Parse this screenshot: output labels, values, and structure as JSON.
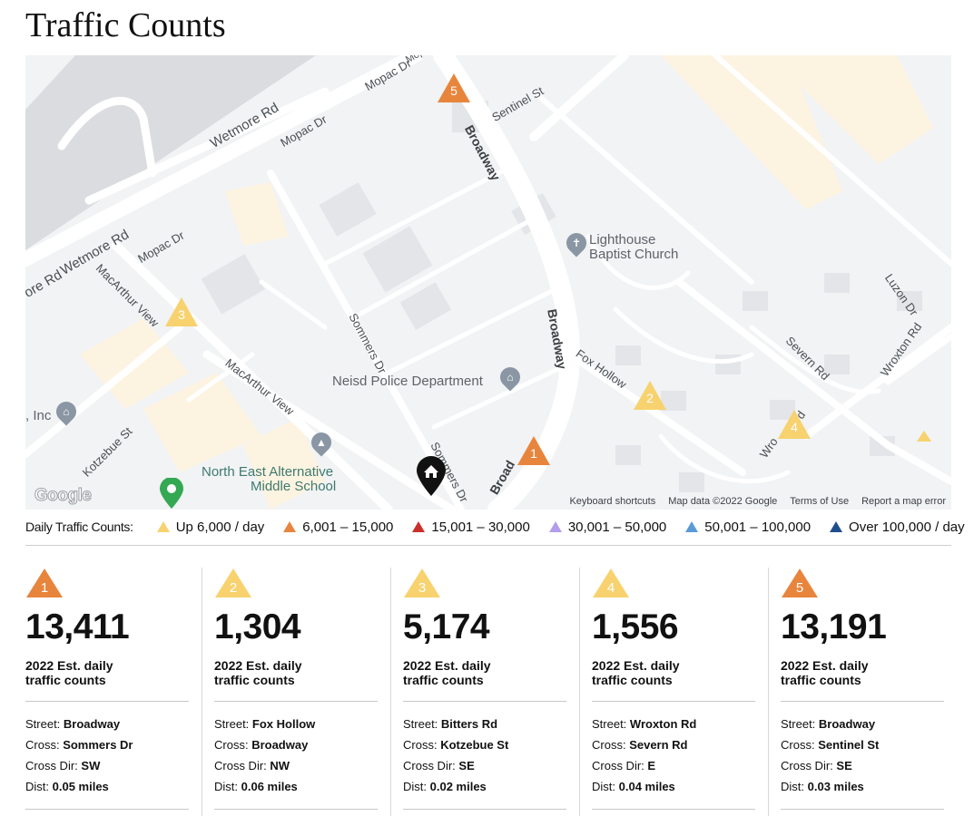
{
  "page_title": "Traffic Counts",
  "map": {
    "roads": [
      {
        "id": "wetmore-1",
        "label": "Wetmore Rd"
      },
      {
        "id": "wetmore-2",
        "label": "Wetmore Rd"
      },
      {
        "id": "wetmore-3",
        "label": "ore Rd"
      },
      {
        "id": "mopac-1",
        "label": "Mopac Dr"
      },
      {
        "id": "mopac-2",
        "label": "Mopac Dr"
      },
      {
        "id": "mopac-3",
        "label": "Mopac Dr"
      },
      {
        "id": "mopac-4",
        "label": "Mopac Dr"
      },
      {
        "id": "macarthur-1",
        "label": "MacArthur View"
      },
      {
        "id": "macarthur-2",
        "label": "MacArthur View"
      },
      {
        "id": "sommers-1",
        "label": "Sommers Dr"
      },
      {
        "id": "sommers-2",
        "label": "Sommers Dr"
      },
      {
        "id": "broadway-1",
        "label": "Broadway"
      },
      {
        "id": "broadway-2",
        "label": "Broadway"
      },
      {
        "id": "broadway-3",
        "label": "Broad"
      },
      {
        "id": "sentinel",
        "label": "Sentinel St"
      },
      {
        "id": "foxhollow",
        "label": "Fox Hollow"
      },
      {
        "id": "severn",
        "label": "Severn Rd"
      },
      {
        "id": "wroxton-1",
        "label": "Wroxton Rd"
      },
      {
        "id": "wroxton-2",
        "label": "Wro"
      },
      {
        "id": "wroxton-3",
        "label": "d"
      },
      {
        "id": "luzon",
        "label": "Luzon Dr"
      },
      {
        "id": "kotzebue",
        "label": "Kotzebue St"
      }
    ],
    "pois": {
      "church": {
        "line1": "Lighthouse",
        "line2": "Baptist Church",
        "icon": "cross-icon"
      },
      "police": {
        "label": "Neisd Police Department",
        "icon": "landmark-icon"
      },
      "school": {
        "line1": "North East Alternative",
        "line2": "Middle School",
        "icon": "graduation-cap-icon"
      },
      "inc": {
        "label": ", Inc",
        "icon": "landmark-icon"
      }
    },
    "markers": [
      {
        "num": "1",
        "color": "#E8853D"
      },
      {
        "num": "2",
        "color": "#F7D26E"
      },
      {
        "num": "3",
        "color": "#F7D26E"
      },
      {
        "num": "4",
        "color": "#F7D26E"
      },
      {
        "num": "5",
        "color": "#E8853D"
      }
    ],
    "footer": {
      "logo": "Google",
      "shortcuts": "Keyboard shortcuts",
      "map_data": "Map data ©2022 Google",
      "terms": "Terms of Use",
      "report": "Report a map error"
    }
  },
  "legend": {
    "title": "Daily Traffic Counts:",
    "items": [
      {
        "label": "Up 6,000 / day",
        "color": "#F7D26E"
      },
      {
        "label": "6,001 – 15,000",
        "color": "#E8853D"
      },
      {
        "label": "15,001 – 30,000",
        "color": "#C9302C"
      },
      {
        "label": "30,001 – 50,000",
        "color": "#B39DEB"
      },
      {
        "label": "50,001 – 100,000",
        "color": "#5B9BD5"
      },
      {
        "label": "Over 100,000 / day",
        "color": "#1F4E8C"
      }
    ]
  },
  "cards": [
    {
      "num": "1",
      "color": "#E8853D",
      "count": "13,411",
      "subtitle": "2022 Est. daily traffic counts",
      "street_label": "Street:",
      "street": "Broadway",
      "cross_label": "Cross:",
      "cross": "Sommers Dr",
      "dir_label": "Cross Dir:",
      "dir": "SW",
      "dist_label": "Dist:",
      "dist": "0.05 miles"
    },
    {
      "num": "2",
      "color": "#F7D26E",
      "count": "1,304",
      "subtitle": "2022 Est. daily traffic counts",
      "street_label": "Street:",
      "street": "Fox Hollow",
      "cross_label": "Cross:",
      "cross": "Broadway",
      "dir_label": "Cross Dir:",
      "dir": "NW",
      "dist_label": "Dist:",
      "dist": "0.06 miles"
    },
    {
      "num": "3",
      "color": "#F7D26E",
      "count": "5,174",
      "subtitle": "2022 Est. daily traffic counts",
      "street_label": "Street:",
      "street": "Bitters Rd",
      "cross_label": "Cross:",
      "cross": "Kotzebue St",
      "dir_label": "Cross Dir:",
      "dir": "SE",
      "dist_label": "Dist:",
      "dist": "0.02 miles"
    },
    {
      "num": "4",
      "color": "#F7D26E",
      "count": "1,556",
      "subtitle": "2022 Est. daily traffic counts",
      "street_label": "Street:",
      "street": "Wroxton Rd",
      "cross_label": "Cross:",
      "cross": "Severn Rd",
      "dir_label": "Cross Dir:",
      "dir": "E",
      "dist_label": "Dist:",
      "dist": "0.04 miles"
    },
    {
      "num": "5",
      "color": "#E8853D",
      "count": "13,191",
      "subtitle": "2022 Est. daily traffic counts",
      "street_label": "Street:",
      "street": "Broadway",
      "cross_label": "Cross:",
      "cross": "Sentinel St",
      "dir_label": "Cross Dir:",
      "dir": "SE",
      "dist_label": "Dist:",
      "dist": "0.03 miles"
    }
  ]
}
